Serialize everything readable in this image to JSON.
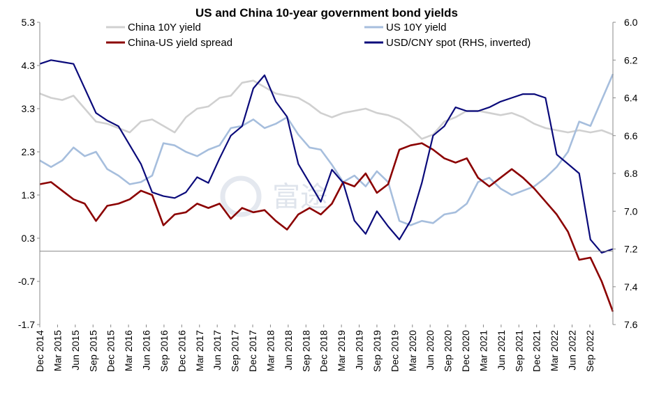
{
  "chart_data": {
    "type": "line",
    "title": "US and China 10-year government bond yields",
    "watermark": "富途",
    "left_axis": {
      "ylim": [
        -1.7,
        5.3
      ],
      "ticks": [
        "5.3",
        "4.3",
        "3.3",
        "2.3",
        "1.3",
        "0.3",
        "-0.7",
        "-1.7"
      ]
    },
    "right_axis": {
      "ylim": [
        6.0,
        7.6
      ],
      "inverted": true,
      "ticks": [
        "6.0",
        "6.2",
        "6.4",
        "6.6",
        "6.8",
        "7.0",
        "7.2",
        "7.4",
        "7.6"
      ]
    },
    "x_ticks": [
      "Dec 2014",
      "Mar 2015",
      "Jun 2015",
      "Sep 2015",
      "Dec 2015",
      "Mar 2016",
      "Jun 2016",
      "Sep 2016",
      "Dec 2016",
      "Mar 2017",
      "Jun 2017",
      "Sep 2017",
      "Dec 2017",
      "Mar 2018",
      "Jun 2018",
      "Sep 2018",
      "Dec 2018",
      "Mar 2019",
      "Jun 2019",
      "Sep 2019",
      "Dec 2019",
      "Mar 2020",
      "Jun 2020",
      "Sep 2020",
      "Dec 2020",
      "Mar 2021",
      "Jun 2021",
      "Sep 2021",
      "Dec 2021",
      "Mar 2022",
      "Jun 2022",
      "Sep 2022"
    ],
    "x_period": "quarterly (Dec 2014 – Dec 2022)",
    "legend_placement": "top",
    "series": [
      {
        "name": "China 10Y yield",
        "axis": "left",
        "color": "#d0d0d0",
        "values": [
          3.65,
          3.55,
          3.5,
          3.6,
          3.3,
          3.0,
          2.95,
          2.85,
          2.75,
          3.0,
          3.05,
          2.9,
          2.75,
          3.1,
          3.3,
          3.35,
          3.55,
          3.6,
          3.9,
          3.95,
          3.8,
          3.65,
          3.6,
          3.55,
          3.4,
          3.2,
          3.1,
          3.2,
          3.25,
          3.3,
          3.2,
          3.15,
          3.05,
          2.85,
          2.6,
          2.7,
          3.0,
          3.1,
          3.25,
          3.25,
          3.2,
          3.15,
          3.2,
          3.1,
          2.95,
          2.85,
          2.8,
          2.75,
          2.8,
          2.75,
          2.8,
          2.7
        ]
      },
      {
        "name": "US 10Y yield",
        "axis": "left",
        "color": "#a6bedd",
        "values": [
          2.1,
          1.95,
          2.1,
          2.4,
          2.2,
          2.3,
          1.9,
          1.75,
          1.55,
          1.6,
          1.75,
          2.5,
          2.45,
          2.3,
          2.2,
          2.35,
          2.45,
          2.85,
          2.9,
          3.05,
          2.85,
          2.95,
          3.1,
          2.7,
          2.4,
          2.35,
          2.0,
          1.6,
          1.75,
          1.5,
          1.85,
          1.6,
          0.7,
          0.6,
          0.7,
          0.65,
          0.85,
          0.9,
          1.1,
          1.6,
          1.7,
          1.45,
          1.3,
          1.4,
          1.5,
          1.7,
          1.95,
          2.3,
          3.0,
          2.9,
          3.5,
          4.1
        ]
      },
      {
        "name": "China-US yield spread",
        "axis": "left",
        "color": "#8b0000",
        "values": [
          1.55,
          1.6,
          1.4,
          1.2,
          1.1,
          0.7,
          1.05,
          1.1,
          1.2,
          1.4,
          1.3,
          0.6,
          0.85,
          0.9,
          1.1,
          1.0,
          1.1,
          0.75,
          1.0,
          0.9,
          0.95,
          0.7,
          0.5,
          0.85,
          1.0,
          0.85,
          1.1,
          1.6,
          1.5,
          1.8,
          1.35,
          1.55,
          2.35,
          2.45,
          2.5,
          2.35,
          2.15,
          2.05,
          2.15,
          1.7,
          1.5,
          1.7,
          1.9,
          1.7,
          1.45,
          1.15,
          0.85,
          0.45,
          -0.2,
          -0.15,
          -0.7,
          -1.4
        ]
      },
      {
        "name": "USD/CNY spot (RHS, inverted)",
        "axis": "right",
        "color": "#0a0a7a",
        "values": [
          6.22,
          6.2,
          6.21,
          6.22,
          6.35,
          6.48,
          6.52,
          6.55,
          6.65,
          6.75,
          6.9,
          6.92,
          6.93,
          6.9,
          6.82,
          6.85,
          6.72,
          6.6,
          6.55,
          6.35,
          6.28,
          6.42,
          6.5,
          6.75,
          6.85,
          6.95,
          6.78,
          6.85,
          7.05,
          7.12,
          7.0,
          7.08,
          7.15,
          7.05,
          6.85,
          6.6,
          6.55,
          6.45,
          6.47,
          6.47,
          6.45,
          6.42,
          6.4,
          6.38,
          6.38,
          6.4,
          6.7,
          6.75,
          6.8,
          7.15,
          7.22,
          7.2
        ]
      }
    ]
  }
}
